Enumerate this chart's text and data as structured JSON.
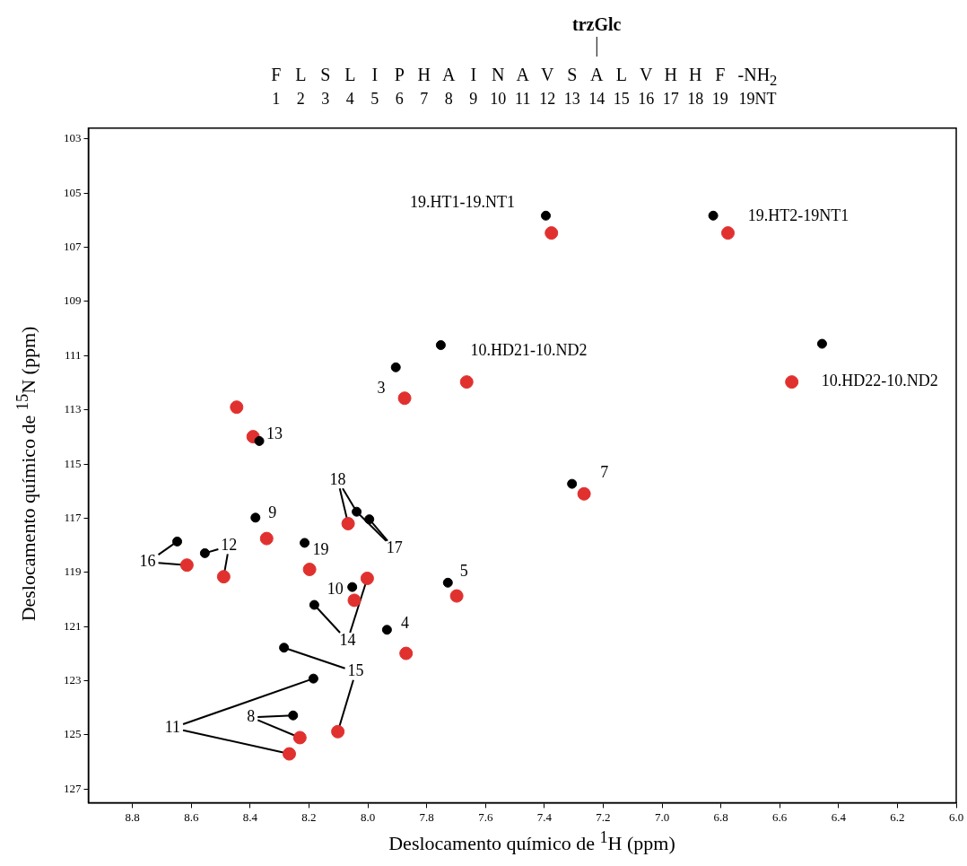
{
  "chart_data": {
    "type": "scatter",
    "xlabel": "Deslocamento químico de $^{1}$H (ppm)",
    "ylabel": "Deslocamento químico de $^{15}$N (ppm)",
    "xlim": [
      8.95,
      6.0
    ],
    "ylim": [
      127.5,
      102.6
    ],
    "xticks": [
      8.8,
      8.6,
      8.4,
      8.2,
      {
        "value": 8,
        "label": "8.0"
      },
      7.8,
      7.6,
      7.4,
      7.2,
      {
        "value": 7,
        "label": "7.0"
      },
      6.8,
      6.6,
      6.4,
      6.2,
      {
        "value": 6,
        "label": "6.0"
      }
    ],
    "yticks": [
      103,
      105,
      107,
      109,
      111,
      113,
      115,
      117,
      119,
      121,
      123,
      125,
      127
    ],
    "grid": false,
    "legend": false,
    "marker": "circle",
    "series": [
      {
        "color": "#000000",
        "x": [
          7.395,
          6.826,
          7.752,
          6.456,
          7.905,
          8.369,
          7.306,
          8.038,
          7.995,
          8.382,
          8.648,
          8.554,
          8.215,
          8.053,
          8.182,
          7.728,
          7.935,
          8.285,
          8.185,
          8.254
        ],
        "values": [
          105.83,
          105.83,
          110.61,
          110.56,
          111.43,
          114.15,
          115.73,
          116.76,
          117.04,
          116.98,
          117.86,
          118.29,
          117.91,
          119.54,
          120.2,
          119.38,
          121.12,
          121.78,
          122.92,
          124.28
        ]
      },
      {
        "color": "#e0312f",
        "x": [
          7.376,
          6.776,
          7.664,
          6.559,
          7.875,
          8.39,
          8.446,
          7.265,
          8.067,
          8.344,
          8.615,
          8.49,
          8.198,
          8.002,
          8.046,
          7.698,
          7.87,
          8.231,
          8.267,
          8.102
        ],
        "values": [
          106.47,
          106.47,
          111.97,
          111.97,
          112.57,
          113.99,
          112.9,
          116.1,
          117.2,
          117.75,
          118.73,
          119.16,
          118.89,
          119.22,
          120.03,
          119.87,
          121.99,
          125.1,
          125.7,
          124.88
        ]
      }
    ],
    "annotations": [
      "trzGlc",
      "F L S L I P H A I N A V S A L V H H F -NH$_{2}$",
      "1 2 3 4 5 6 7 8 9 10 11 12 13 14 15 16 17 18 19 19NT",
      {
        "text": "19.HT1-19.NT1",
        "x": 7.395,
        "y": 105.83
      },
      {
        "text": "19.HT2-19NT1",
        "x": 6.826,
        "y": 105.83
      },
      {
        "text": "10.HD21-10.ND2",
        "x": 7.752,
        "y": 110.61
      },
      {
        "text": "10.HD22-10.ND2",
        "x": 6.559,
        "y": 111.97
      },
      {
        "text": "3",
        "x": 7.875,
        "y": 112.57
      },
      {
        "text": "13",
        "x": 8.369,
        "y": 114.15
      },
      {
        "text": "18",
        "x": 8.038,
        "y": 116.76
      },
      {
        "text": "7",
        "x": 7.306,
        "y": 115.73
      },
      {
        "text": "9",
        "x": 8.382,
        "y": 116.98
      },
      {
        "text": "17",
        "x": 7.995,
        "y": 117.04
      },
      {
        "text": "16",
        "x": 8.648,
        "y": 117.86
      },
      {
        "text": "12",
        "x": 8.554,
        "y": 118.29
      },
      {
        "text": "19",
        "x": 8.215,
        "y": 117.91
      },
      {
        "text": "5",
        "x": 7.728,
        "y": 119.38
      },
      {
        "text": "10",
        "x": 8.053,
        "y": 119.54
      },
      {
        "text": "4",
        "x": 7.935,
        "y": 121.12
      },
      {
        "text": "14",
        "x": 8.182,
        "y": 120.2
      },
      {
        "text": "15",
        "x": 8.285,
        "y": 121.78
      },
      {
        "text": "8",
        "x": 8.254,
        "y": 124.28
      },
      {
        "text": "11",
        "x": 8.185,
        "y": 122.92
      }
    ]
  }
}
